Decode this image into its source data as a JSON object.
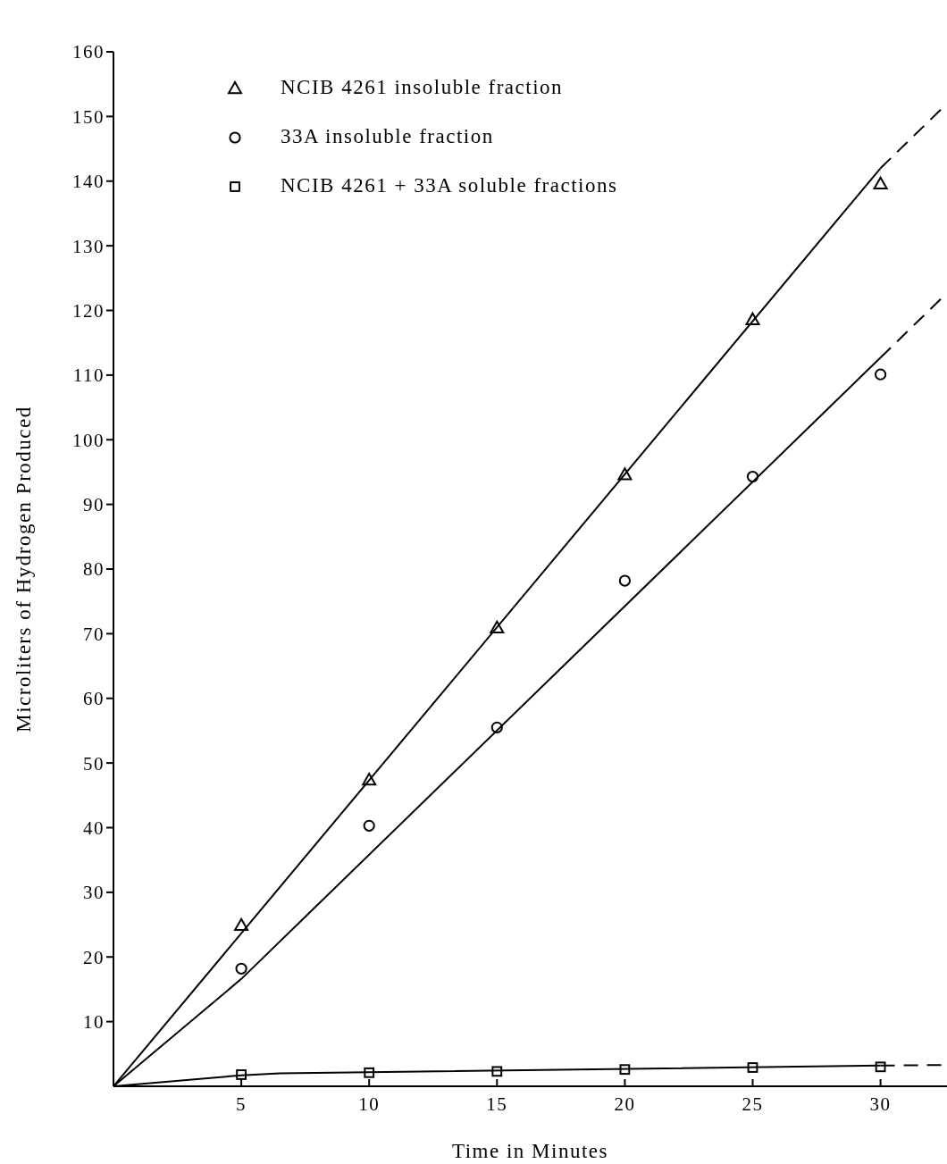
{
  "chart_data": {
    "type": "scatter",
    "xlabel": "Time in Minutes",
    "ylabel": "Microliters of Hydrogen Produced",
    "xlim": [
      0,
      32.6
    ],
    "xticks": [
      5,
      10,
      15,
      20,
      25,
      30
    ],
    "ylim": [
      0,
      160
    ],
    "yticks": [
      10,
      20,
      30,
      40,
      50,
      60,
      70,
      80,
      90,
      100,
      110,
      120,
      130,
      140,
      150,
      160
    ],
    "grid": false,
    "legend": "top left",
    "series": [
      {
        "name": "NCIB 4261 insoluble fraction",
        "color": "#000000",
        "marker": "triangle",
        "x": [
          5,
          10,
          15,
          20,
          25,
          30
        ],
        "values": [
          24.9,
          47.4,
          70.9,
          94.6,
          118.6,
          139.6
        ]
      },
      {
        "name": "33A insoluble fraction",
        "color": "#000000",
        "marker": "circle",
        "x": [
          5,
          10,
          15,
          20,
          25,
          30
        ],
        "values": [
          18.2,
          40.3,
          55.5,
          78.2,
          94.3,
          110.1
        ]
      },
      {
        "name": "NCIB 4261 + 33A soluble fractions",
        "color": "#000000",
        "marker": "square",
        "x": [
          5,
          10,
          15,
          20,
          25,
          30
        ],
        "values": [
          1.8,
          2.1,
          2.3,
          2.6,
          2.9,
          3.0
        ]
      },
      {
        "type": "line",
        "color": "#000000",
        "line_style": "solid",
        "marker": "none",
        "x": [
          0,
          30
        ],
        "values": [
          0,
          142
        ]
      },
      {
        "type": "line",
        "color": "#000000",
        "line_style": "dashed",
        "marker": "none",
        "x": [
          30,
          32.6
        ],
        "values": [
          142,
          152
        ]
      },
      {
        "type": "line",
        "color": "#000000",
        "line_style": "solid",
        "marker": "none",
        "x": [
          0,
          5,
          30
        ],
        "values": [
          0,
          16.6,
          112.7
        ]
      },
      {
        "type": "line",
        "color": "#000000",
        "line_style": "dashed",
        "marker": "none",
        "x": [
          30,
          32.6
        ],
        "values": [
          112.7,
          122.7
        ]
      },
      {
        "type": "line",
        "color": "#000000",
        "line_style": "solid",
        "marker": "none",
        "x": [
          0,
          5,
          6.5,
          30
        ],
        "values": [
          0,
          1.7,
          2.0,
          3.2
        ]
      },
      {
        "type": "line",
        "color": "#000000",
        "line_style": "dashed",
        "marker": "none",
        "x": [
          30,
          32.6
        ],
        "values": [
          3.2,
          3.3
        ]
      }
    ]
  }
}
